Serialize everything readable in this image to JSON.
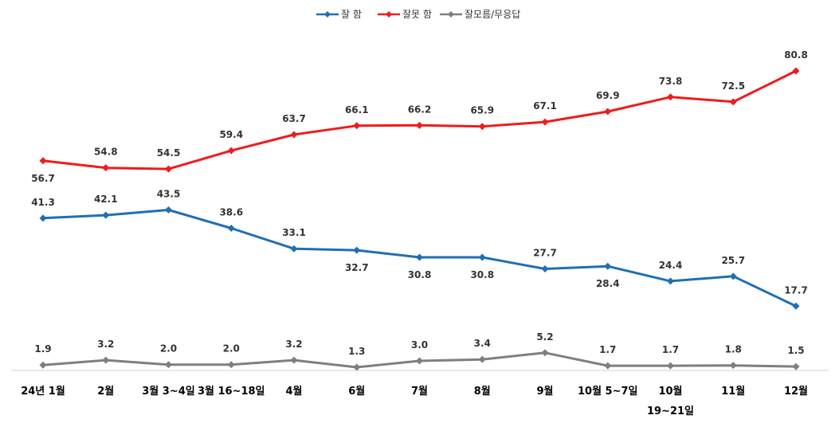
{
  "chart_data": {
    "type": "line",
    "categories": [
      "24년 1월",
      "2월",
      "3월 3~4일",
      "3월 16~18일",
      "4월",
      "6월",
      "7월",
      "8월",
      "9월",
      "10월 5~7일",
      "10월|19~21일",
      "11월",
      "12월"
    ],
    "series": [
      {
        "name": "잘 함",
        "color": "#1f6fb5",
        "values": [
          41.3,
          42.1,
          43.5,
          38.6,
          33.1,
          32.7,
          30.8,
          30.8,
          27.7,
          28.4,
          24.4,
          25.7,
          17.7
        ],
        "labels": [
          "41.3",
          "42.1",
          "43.5",
          "38.6",
          "33.1",
          "32.7",
          "30.8",
          "30.8",
          "27.7",
          "28.4",
          "24.4",
          "25.7",
          "17.7"
        ]
      },
      {
        "name": "잘못 함",
        "color": "#ee1c1c",
        "values": [
          56.7,
          54.8,
          54.5,
          59.4,
          63.7,
          66.1,
          66.2,
          65.9,
          67.1,
          69.9,
          73.8,
          72.5,
          80.8
        ],
        "labels": [
          "56.7",
          "54.8",
          "54.5",
          "59.4",
          "63.7",
          "66.1",
          "66.2",
          "65.9",
          "67.1",
          "69.9",
          "73.8",
          "72.5",
          "80.8"
        ]
      },
      {
        "name": "잘모름/무응답",
        "color": "#7f7f7f",
        "values": [
          1.9,
          3.2,
          2.0,
          2.0,
          3.2,
          1.3,
          3.0,
          3.4,
          5.2,
          1.7,
          1.7,
          1.8,
          1.5
        ],
        "labels": [
          "1.9",
          "3.2",
          "2.0",
          "2.0",
          "3.2",
          "1.3",
          "3.0",
          "3.4",
          "5.2",
          "1.7",
          "1.7",
          "1.8",
          "1.5"
        ]
      }
    ],
    "legend_position": "top-center",
    "grid": false
  }
}
